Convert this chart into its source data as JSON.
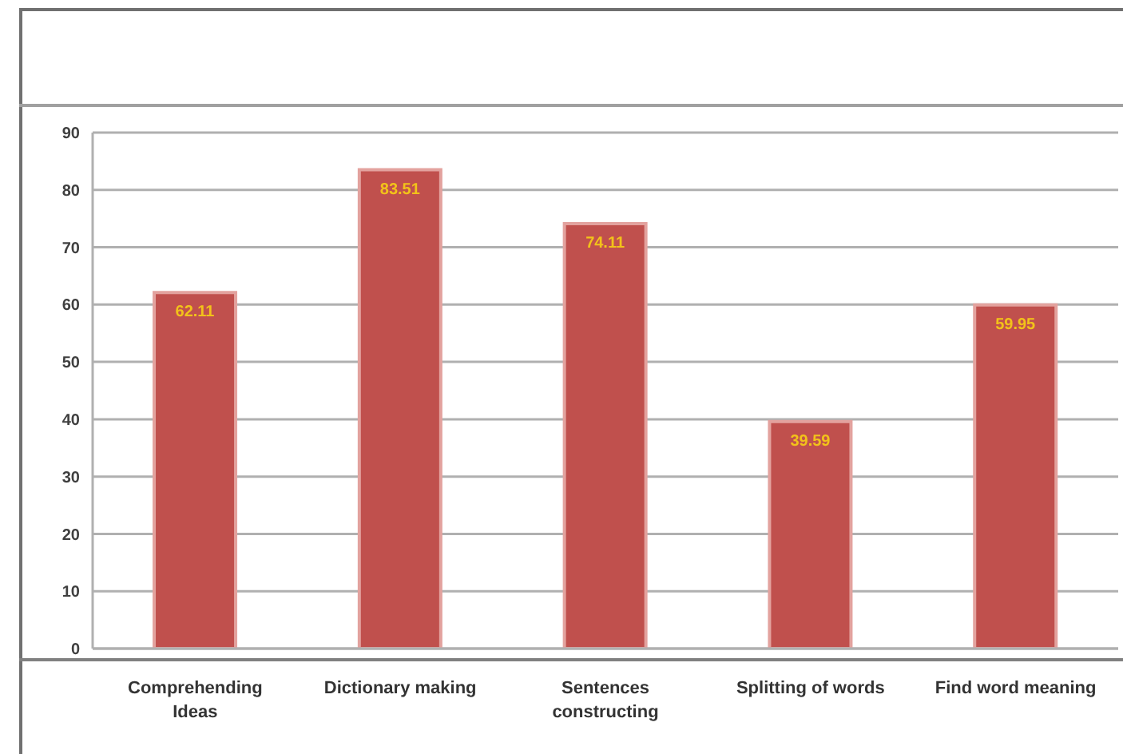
{
  "chart_data": {
    "type": "bar",
    "categories": [
      "Comprehending Ideas",
      "Dictionary making",
      "Sentences constructing",
      "Splitting of words",
      "Find word meaning"
    ],
    "values": [
      62.11,
      83.51,
      74.11,
      39.59,
      59.95
    ],
    "color": "#c0504d",
    "ylim": [
      0,
      90
    ],
    "yticks": [
      0,
      10,
      20,
      30,
      40,
      50,
      60,
      70,
      80,
      90
    ],
    "grid": "y",
    "data_labels": true
  }
}
